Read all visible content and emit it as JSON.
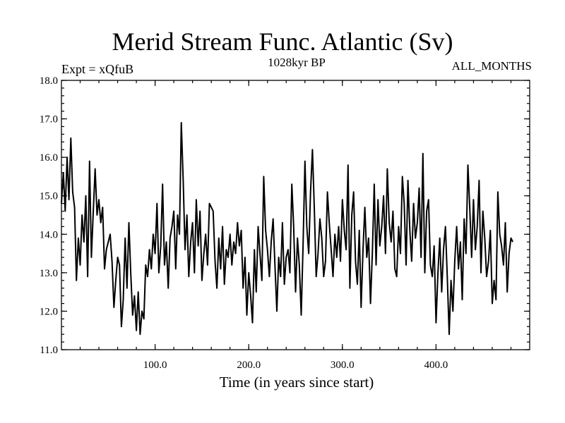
{
  "chart_data": {
    "type": "line",
    "title": "Merid Stream Func. Atlantic (Sv)",
    "subtitle": "1028kyr BP",
    "left_annotation": "Expt = xQfuB",
    "right_annotation": "ALL_MONTHS",
    "xlabel": "Time (in years since start)",
    "ylabel": "",
    "xlim": [
      0,
      500
    ],
    "ylim": [
      11.0,
      18.0
    ],
    "x_ticks": [
      100,
      200,
      300,
      400
    ],
    "x_tick_labels": [
      "100.0",
      "200.0",
      "300.0",
      "400.0"
    ],
    "y_ticks": [
      11,
      12,
      13,
      14,
      15,
      16,
      17,
      18
    ],
    "y_tick_labels": [
      "11.0",
      "12.0",
      "13.0",
      "14.0",
      "15.0",
      "16.0",
      "17.0",
      "18.0"
    ],
    "grid": false,
    "series": [
      {
        "name": "Merid Stream Func. Atlantic",
        "x_start": 0,
        "x_step": 2,
        "values": [
          14.8,
          15.6,
          14.6,
          16.0,
          14.9,
          16.5,
          15.1,
          14.7,
          12.8,
          13.9,
          13.2,
          14.5,
          13.8,
          15.0,
          12.9,
          15.9,
          13.4,
          14.6,
          15.7,
          14.5,
          14.9,
          14.3,
          14.7,
          13.1,
          13.6,
          13.8,
          14.0,
          13.3,
          12.1,
          12.8,
          13.4,
          13.2,
          11.6,
          12.3,
          13.9,
          12.6,
          14.3,
          13.0,
          11.9,
          12.4,
          11.5,
          12.5,
          11.4,
          12.0,
          11.8,
          13.2,
          12.9,
          13.6,
          13.1,
          14.0,
          13.5,
          14.8,
          13.0,
          13.7,
          15.3,
          13.2,
          13.8,
          12.6,
          13.9,
          14.2,
          14.6,
          13.1,
          14.5,
          14.0,
          16.9,
          15.4,
          13.6,
          14.5,
          12.9,
          13.8,
          14.3,
          13.0,
          14.9,
          13.7,
          14.6,
          12.8,
          13.5,
          14.0,
          13.2,
          14.8,
          14.7,
          14.6,
          13.3,
          12.6,
          13.9,
          13.1,
          14.2,
          12.7,
          13.6,
          13.4,
          14.0,
          13.2,
          13.8,
          13.5,
          14.3,
          13.7,
          14.1,
          12.6,
          13.4,
          11.9,
          13.0,
          12.4,
          11.7,
          13.6,
          12.5,
          14.2,
          13.5,
          12.8,
          15.5,
          14.1,
          13.6,
          12.9,
          13.8,
          14.4,
          13.2,
          12.0,
          13.4,
          12.9,
          14.3,
          12.7,
          13.4,
          13.6,
          13.0,
          15.3,
          14.2,
          12.5,
          13.9,
          13.2,
          11.9,
          13.7,
          15.9,
          14.2,
          13.5,
          15.1,
          16.2,
          14.7,
          12.9,
          13.5,
          14.4,
          13.9,
          12.9,
          13.3,
          15.1,
          14.3,
          13.6,
          12.9,
          14.0,
          13.4,
          14.2,
          13.3,
          14.9,
          14.1,
          13.6,
          15.8,
          12.6,
          14.5,
          15.1,
          13.3,
          12.7,
          14.1,
          12.1,
          13.6,
          14.7,
          13.4,
          13.9,
          12.2,
          13.5,
          15.3,
          13.2,
          14.9,
          13.7,
          14.2,
          15.0,
          13.5,
          15.7,
          14.3,
          13.8,
          14.6,
          13.1,
          12.9,
          14.2,
          13.5,
          15.5,
          14.8,
          13.2,
          15.4,
          14.1,
          13.3,
          14.8,
          13.9,
          14.3,
          15.2,
          13.4,
          16.1,
          13.0,
          14.6,
          14.9,
          13.2,
          12.9,
          13.7,
          11.7,
          13.0,
          13.9,
          12.5,
          13.6,
          14.2,
          12.9,
          11.4,
          12.8,
          12.0,
          13.3,
          14.2,
          13.1,
          13.8,
          12.3,
          14.4,
          13.5,
          15.8,
          14.7,
          13.4,
          14.9,
          13.6,
          14.2,
          15.4,
          13.0,
          14.6,
          13.9,
          12.9,
          13.3,
          14.1,
          12.2,
          12.8,
          12.3,
          15.1,
          14.0,
          13.7,
          13.2,
          14.3,
          12.5,
          13.5,
          13.9,
          13.8
        ]
      }
    ]
  }
}
